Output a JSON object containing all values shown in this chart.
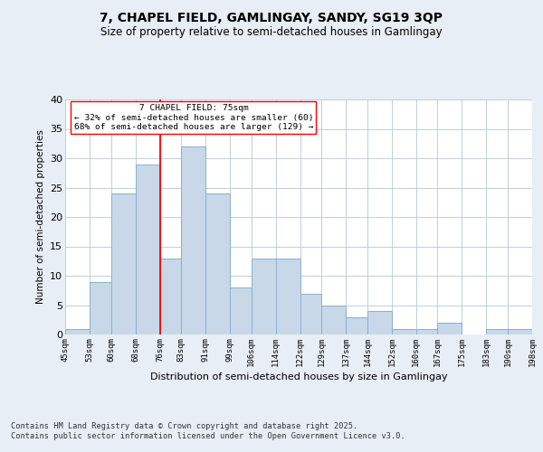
{
  "title": "7, CHAPEL FIELD, GAMLINGAY, SANDY, SG19 3QP",
  "subtitle": "Size of property relative to semi-detached houses in Gamlingay",
  "xlabel": "Distribution of semi-detached houses by size in Gamlingay",
  "ylabel": "Number of semi-detached properties",
  "bins": [
    45,
    53,
    60,
    68,
    76,
    83,
    91,
    99,
    106,
    114,
    122,
    129,
    137,
    144,
    152,
    160,
    167,
    175,
    183,
    190,
    198
  ],
  "counts": [
    1,
    9,
    24,
    29,
    13,
    32,
    24,
    8,
    13,
    13,
    7,
    5,
    3,
    4,
    1,
    1,
    2,
    0,
    1,
    1
  ],
  "bar_color": "#c8d8e8",
  "bar_edge_color": "#8ab0cc",
  "property_line_x": 76,
  "property_line_color": "red",
  "annotation_text": "7 CHAPEL FIELD: 75sqm\n← 32% of semi-detached houses are smaller (60)\n68% of semi-detached houses are larger (129) →",
  "annotation_box_color": "white",
  "annotation_box_edge_color": "red",
  "footer_text": "Contains HM Land Registry data © Crown copyright and database right 2025.\nContains public sector information licensed under the Open Government Licence v3.0.",
  "ylim": [
    0,
    40
  ],
  "bg_color": "#e8eef5",
  "plot_bg_color": "white",
  "tick_labels": [
    "45sqm",
    "53sqm",
    "60sqm",
    "68sqm",
    "76sqm",
    "83sqm",
    "91sqm",
    "99sqm",
    "106sqm",
    "114sqm",
    "122sqm",
    "129sqm",
    "137sqm",
    "144sqm",
    "152sqm",
    "160sqm",
    "167sqm",
    "175sqm",
    "183sqm",
    "190sqm",
    "198sqm"
  ],
  "yticks": [
    0,
    5,
    10,
    15,
    20,
    25,
    30,
    35,
    40
  ]
}
